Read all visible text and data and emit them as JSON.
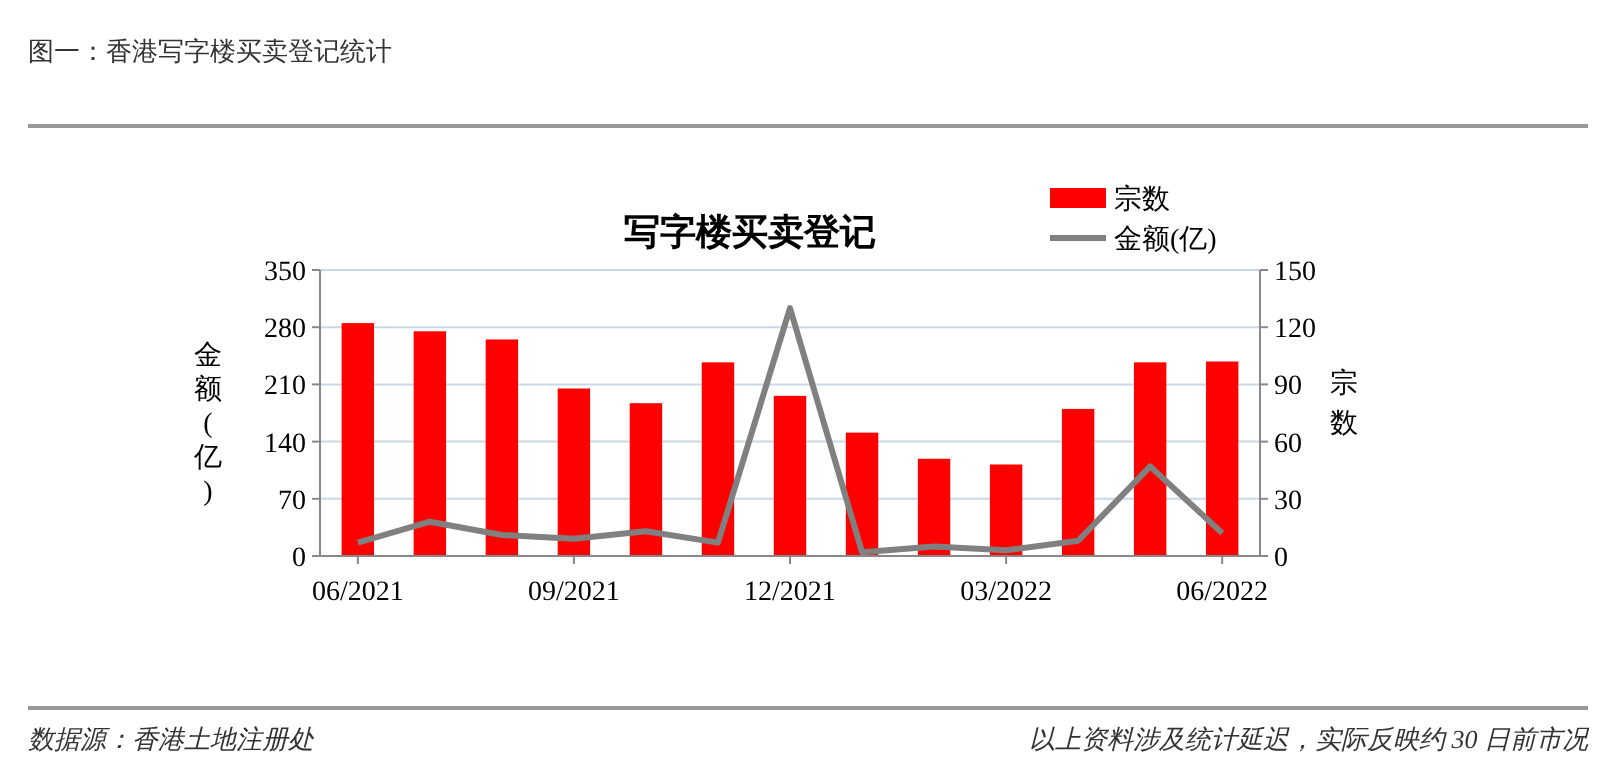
{
  "chart_data": {
    "type": "bar",
    "title": "写字楼买卖登记",
    "ylabel": "金额(亿)",
    "y2label": "宗数",
    "categories": [
      "06/2021",
      null,
      null,
      "09/2021",
      null,
      null,
      "12/2021",
      null,
      null,
      "03/2022",
      null,
      null,
      "06/2022"
    ],
    "series": [
      {
        "name": "宗数",
        "color": "#ff0000",
        "values": [
          285,
          275,
          265,
          205,
          187,
          237,
          196,
          151,
          119,
          112,
          180,
          237,
          238
        ]
      },
      {
        "name": "金额(亿)",
        "type": "line",
        "axis": "y2",
        "color": "#808080",
        "values": [
          7,
          18,
          11,
          9,
          13,
          7,
          130,
          2,
          5,
          3,
          8,
          47,
          12
        ]
      }
    ],
    "ylim": [
      0,
      350
    ],
    "yticks": [
      0,
      70,
      140,
      210,
      280,
      350
    ],
    "y2lim": [
      0,
      150
    ],
    "y2ticks": [
      0,
      30,
      60,
      90,
      120,
      150
    ],
    "grid": "y",
    "legend": "top right",
    "marker": "none",
    "annotations": [
      "图一：香港写字楼买卖登记统计",
      "数据源：香港土地注册处",
      "以上资料涉及统计延迟，实际反映约 30 日前市况"
    ]
  }
}
